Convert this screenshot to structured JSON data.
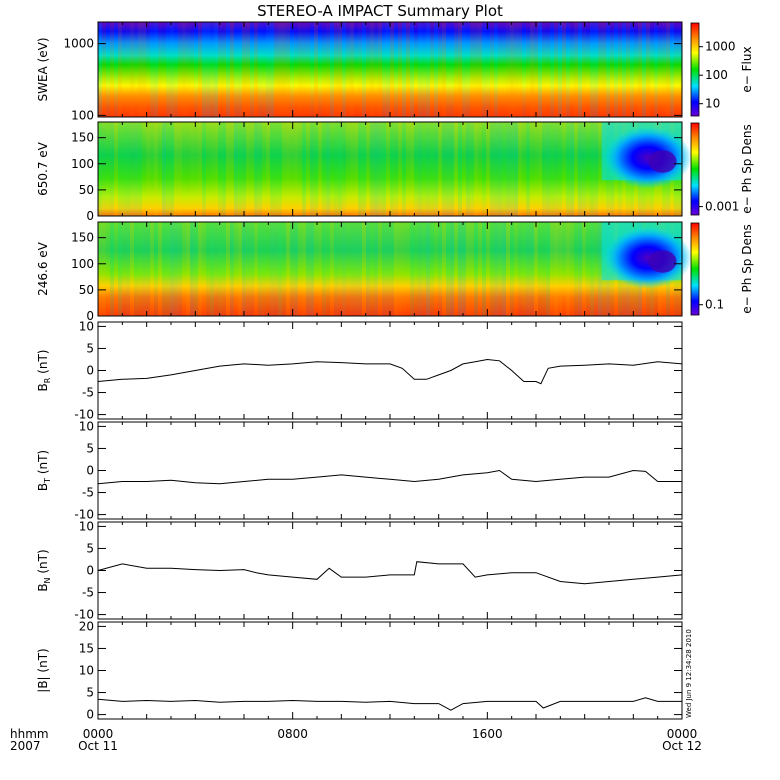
{
  "title": "STEREO-A IMPACT Summary Plot",
  "stamp": "Wed Jun  9 12:34:28 2010",
  "time_axis": {
    "row_labels": [
      "hhmm",
      "2007"
    ],
    "ticks": [
      {
        "hour": 0,
        "top": "0000",
        "bottom": "Oct 11"
      },
      {
        "hour": 8,
        "top": "0800",
        "bottom": ""
      },
      {
        "hour": 16,
        "top": "1600",
        "bottom": ""
      },
      {
        "hour": 24,
        "top": "0000",
        "bottom": "Oct 12"
      }
    ],
    "range_hours": [
      0,
      24
    ]
  },
  "chart_data": [
    {
      "type": "heatmap",
      "ylabel": "SWEA (eV)",
      "ylim": [
        95,
        2000
      ],
      "log_scale": true,
      "yticks": [
        "100",
        "1000"
      ],
      "colorbar_label": "e− Flux",
      "colorbar_ticks": [
        "10",
        "100",
        "1000"
      ],
      "description": "Energy spectrum; highest flux at lowest energies, decreasing toward 2000 eV"
    },
    {
      "type": "heatmap",
      "ylabel": "650.7 eV",
      "ylim": [
        0,
        180
      ],
      "yticks": [
        "0",
        "50",
        "100",
        "150"
      ],
      "colorbar_label": "e− Ph Sp Dens",
      "colorbar_ticks": [
        "0.001"
      ],
      "description": "Pitch-angle distribution; depletion near 90–120 deg after ~21h"
    },
    {
      "type": "heatmap",
      "ylabel": "246.6 eV",
      "ylim": [
        0,
        180
      ],
      "yticks": [
        "0",
        "50",
        "100",
        "150"
      ],
      "colorbar_label": "e− Ph Sp Dens",
      "colorbar_ticks": [
        "0.1"
      ],
      "description": "Pitch-angle distribution; strong beam near 0–50 deg"
    },
    {
      "type": "line",
      "ylabel": "B_R (nT)",
      "sub": "R",
      "ylim": [
        -11,
        11
      ],
      "yticks": [
        "-10",
        "-5",
        "0",
        "5",
        "10"
      ],
      "x": [
        0,
        1,
        2,
        3,
        4,
        5,
        6,
        7,
        8,
        9,
        10,
        11,
        12,
        12.5,
        13,
        13.5,
        14,
        14.5,
        15,
        15.5,
        16,
        16.5,
        17,
        17.5,
        18,
        18.2,
        18.5,
        19,
        20,
        21,
        22,
        23,
        24
      ],
      "y": [
        -2.5,
        -2,
        -1.8,
        -1,
        0,
        1,
        1.5,
        1.2,
        1.5,
        2,
        1.8,
        1.5,
        1.5,
        0.5,
        -2,
        -2,
        -1,
        0,
        1.5,
        2,
        2.5,
        2.2,
        0,
        -2.5,
        -2.5,
        -3,
        0.5,
        1,
        1.2,
        1.5,
        1.2,
        2,
        1.5
      ]
    },
    {
      "type": "line",
      "ylabel": "B_T (nT)",
      "sub": "T",
      "ylim": [
        -11,
        11
      ],
      "yticks": [
        "-10",
        "-5",
        "0",
        "5",
        "10"
      ],
      "x": [
        0,
        1,
        2,
        3,
        4,
        5,
        6,
        7,
        8,
        9,
        10,
        11,
        12,
        13,
        14,
        15,
        16,
        16.5,
        17,
        18,
        19,
        20,
        21,
        22,
        22.5,
        23,
        24
      ],
      "y": [
        -3,
        -2.5,
        -2.5,
        -2.2,
        -2.8,
        -3,
        -2.5,
        -2,
        -2,
        -1.5,
        -1,
        -1.5,
        -2,
        -2.5,
        -2,
        -1,
        -0.5,
        0,
        -2,
        -2.5,
        -2,
        -1.5,
        -1.5,
        0,
        -0.2,
        -2.5,
        -2.5
      ]
    },
    {
      "type": "line",
      "ylabel": "B_N (nT)",
      "sub": "N",
      "ylim": [
        -11,
        11
      ],
      "yticks": [
        "-10",
        "-5",
        "0",
        "5",
        "10"
      ],
      "x": [
        0,
        1,
        2,
        3,
        4,
        5,
        6,
        6.5,
        7,
        8,
        9,
        9.5,
        10,
        11,
        12,
        13,
        13.1,
        14,
        15,
        15.5,
        16,
        17,
        18,
        19,
        20,
        21,
        22,
        23,
        24
      ],
      "y": [
        0,
        1.5,
        0.5,
        0.5,
        0.2,
        0,
        0.2,
        -0.5,
        -1,
        -1.5,
        -2,
        0.5,
        -1.5,
        -1.5,
        -1,
        -1,
        2,
        1.5,
        1.5,
        -1.5,
        -1,
        -0.5,
        -0.5,
        -2.5,
        -3,
        -2.5,
        -2,
        -1.5,
        -1
      ]
    },
    {
      "type": "line",
      "ylabel": "|B| (nT)",
      "ylim": [
        -1,
        21
      ],
      "yticks": [
        "0",
        "5",
        "10",
        "15",
        "20"
      ],
      "x": [
        0,
        1,
        2,
        3,
        4,
        5,
        6,
        7,
        8,
        9,
        10,
        11,
        12,
        13,
        14,
        14.5,
        15,
        16,
        17,
        18,
        18.3,
        19,
        20,
        21,
        22,
        22.5,
        23,
        24
      ],
      "y": [
        3.5,
        3,
        3.2,
        3,
        3.2,
        2.8,
        3,
        3,
        3.2,
        3,
        3,
        2.8,
        3,
        2.5,
        2.5,
        1,
        2.5,
        3,
        3,
        3,
        1.5,
        3,
        3,
        3,
        3,
        3.8,
        3,
        3
      ]
    }
  ]
}
